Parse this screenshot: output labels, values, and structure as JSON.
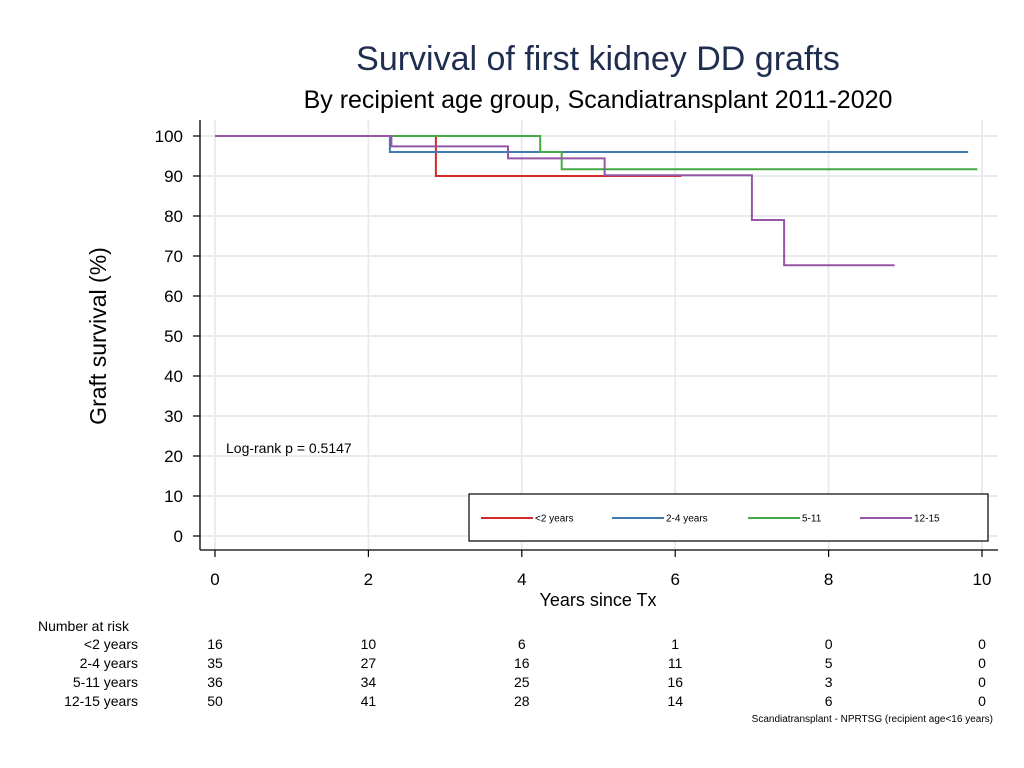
{
  "chart_data": {
    "type": "line",
    "title": "Survival of first kidney DD grafts",
    "subtitle": "By recipient age group, Scandiatransplant 2011-2020",
    "xlabel": "Years since Tx",
    "ylabel": "Graft survival (%)",
    "xlim": [
      0,
      10
    ],
    "ylim": [
      0,
      100
    ],
    "x_ticks": [
      0,
      2,
      4,
      6,
      8,
      10
    ],
    "y_ticks": [
      0,
      10,
      20,
      30,
      40,
      50,
      60,
      70,
      80,
      90,
      100
    ],
    "grid": true,
    "annotation": "Log-rank p = 0.5147",
    "legend_position": "bottom-right",
    "series": [
      {
        "name": "<2 years",
        "color": "#d62a2a",
        "x": [
          0,
          2.88,
          6.08
        ],
        "y": [
          100,
          90,
          90
        ]
      },
      {
        "name": "2-4 years",
        "color": "#3f7bb2",
        "x": [
          0,
          2.28,
          9.82
        ],
        "y": [
          100,
          96,
          96
        ]
      },
      {
        "name": "5-11",
        "color": "#46a946",
        "x": [
          0,
          4.24,
          4.52,
          9.94
        ],
        "y": [
          100,
          96,
          91.7,
          91.7
        ]
      },
      {
        "name": "12-15",
        "color": "#9556a6",
        "x": [
          0,
          2.3,
          3.82,
          5.08,
          7.0,
          7.42,
          8.86
        ],
        "y": [
          100,
          97.4,
          94.4,
          90.2,
          79,
          67.7,
          67.7
        ]
      }
    ],
    "risk_table": {
      "title": "Number at risk",
      "times": [
        0,
        2,
        4,
        6,
        8,
        10
      ],
      "rows": [
        {
          "label": "<2 years",
          "values": [
            16,
            10,
            6,
            1,
            0,
            0
          ]
        },
        {
          "label": "2-4 years",
          "values": [
            35,
            27,
            16,
            11,
            5,
            0
          ]
        },
        {
          "label": "5-11 years",
          "values": [
            36,
            34,
            25,
            16,
            3,
            0
          ]
        },
        {
          "label": "12-15 years",
          "values": [
            50,
            41,
            28,
            14,
            6,
            0
          ]
        }
      ]
    },
    "source_note": "Scandiatransplant - NPRTSG (recipient age<16 years)"
  }
}
